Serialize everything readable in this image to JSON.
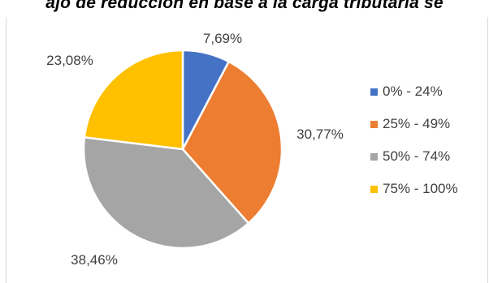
{
  "title": "ajo de reducción en base a la carga tributaria se",
  "colors": {
    "blue": "#4472c4",
    "orange": "#ed7d31",
    "gray": "#a5a5a5",
    "yellow": "#ffc000"
  },
  "chart_data": {
    "type": "pie",
    "categories": [
      "0% - 24%",
      "25% - 49%",
      "50% - 74%",
      "75% - 100%"
    ],
    "values": [
      7.69,
      30.77,
      38.46,
      23.08
    ],
    "data_labels": [
      "7,69%",
      "30,77%",
      "38,46%",
      "23,08%"
    ],
    "colors": [
      "#4472c4",
      "#ed7d31",
      "#a5a5a5",
      "#ffc000"
    ],
    "legend_position": "right",
    "start_angle": "12 o'clock, clockwise"
  }
}
